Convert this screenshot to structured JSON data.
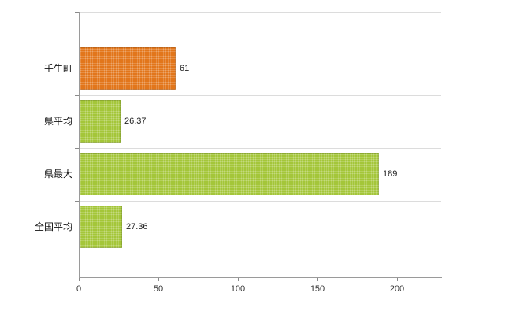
{
  "chart_data": {
    "type": "bar",
    "orientation": "horizontal",
    "title": "",
    "categories": [
      "壬生町",
      "県平均",
      "県最大",
      "全国平均"
    ],
    "values": [
      61,
      26.37,
      189,
      27.36
    ],
    "value_labels": [
      "61",
      "26.37",
      "189",
      "27.36"
    ],
    "bar_colors": [
      "#e2761b",
      "#a4c639",
      "#a4c639",
      "#a4c639"
    ],
    "x_ticks": [
      "0",
      "50",
      "100",
      "150",
      "200"
    ],
    "x_tick_values": [
      0,
      50,
      100,
      150,
      200
    ],
    "xlim": [
      0,
      228
    ],
    "grid": true,
    "legend": "none",
    "background_color": "#ffffff",
    "gridline_color": "#dcdcdc",
    "axis_color": "#9a9a9a"
  }
}
